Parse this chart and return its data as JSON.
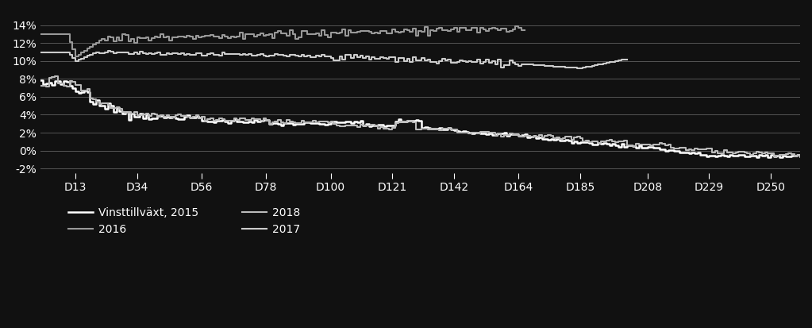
{
  "background_color": "#111111",
  "text_color": "#ffffff",
  "grid_color": "#555555",
  "line_colors": {
    "2015": "#ffffff",
    "2016": "#999999",
    "2017": "#cccccc",
    "2018": "#bbbbbb"
  },
  "x_ticks": [
    13,
    34,
    56,
    78,
    100,
    121,
    142,
    164,
    185,
    208,
    229,
    250
  ],
  "x_tick_labels": [
    "D13",
    "D34",
    "D56",
    "D78",
    "D100",
    "D121",
    "D142",
    "D164",
    "D185",
    "D208",
    "D229",
    "D250"
  ],
  "ylim": [
    -0.025,
    0.155
  ],
  "yticks": [
    -0.02,
    0.0,
    0.02,
    0.04,
    0.06,
    0.08,
    0.1,
    0.12,
    0.14
  ],
  "ytick_labels": [
    "-2%",
    "0%",
    "2%",
    "4%",
    "6%",
    "8%",
    "10%",
    "12%",
    "14%"
  ],
  "legend_entries": [
    {
      "label": "Vinsttillväxt, 2015",
      "col": 0,
      "row": 0
    },
    {
      "label": "2016",
      "col": 1,
      "row": 0
    },
    {
      "label": "2017",
      "col": 0,
      "row": 1
    },
    {
      "label": "2018",
      "col": 1,
      "row": 1
    }
  ],
  "n_points": 260
}
